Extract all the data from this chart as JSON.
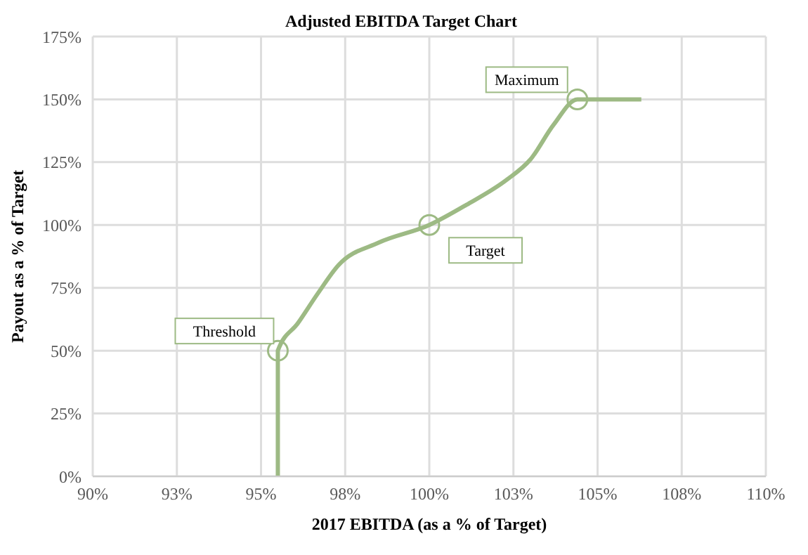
{
  "chart_data": {
    "type": "line",
    "title": "Adjusted EBITDA Target Chart",
    "xlabel": "2017 EBITDA (as a % of Target)",
    "ylabel": "Payout as a % of Target",
    "xlim": [
      90,
      110
    ],
    "xticks": [
      {
        "value": 90,
        "label": "90%"
      },
      {
        "value": 92.5,
        "label": "93%"
      },
      {
        "value": 95,
        "label": "95%"
      },
      {
        "value": 97.5,
        "label": "98%"
      },
      {
        "value": 100,
        "label": "100%"
      },
      {
        "value": 102.5,
        "label": "103%"
      },
      {
        "value": 105,
        "label": "105%"
      },
      {
        "value": 107.5,
        "label": "108%"
      },
      {
        "value": 110,
        "label": "110%"
      }
    ],
    "ylim": [
      0,
      175
    ],
    "yticks": [
      {
        "value": 0,
        "label": "0%"
      },
      {
        "value": 25,
        "label": "25%"
      },
      {
        "value": 50,
        "label": "50%"
      },
      {
        "value": 75,
        "label": "75%"
      },
      {
        "value": 100,
        "label": "100%"
      },
      {
        "value": 125,
        "label": "125%"
      },
      {
        "value": 150,
        "label": "150%"
      },
      {
        "value": 175,
        "label": "175%"
      }
    ],
    "grid": true,
    "marker": "none",
    "line_style": "solid",
    "series": [
      {
        "color": "#9dba84",
        "x": [
          95.5,
          95.5,
          96.1,
          96.7,
          97.3,
          98.5,
          100,
          101.1,
          102.3,
          103,
          103.7,
          104.4,
          106.3
        ],
        "values": [
          0,
          50,
          61,
          73,
          84,
          93,
          100,
          108,
          118,
          126,
          140,
          150,
          150
        ]
      },
      {
        "type": "scatter",
        "color": "#9dba84",
        "marker": "circle",
        "x": [
          95.5,
          100,
          104.4
        ],
        "values": [
          50,
          100,
          150
        ]
      }
    ],
    "annotations": [
      {
        "text": "Threshold",
        "x": 95.5,
        "y": 50
      },
      {
        "text": "Target",
        "x": 100,
        "y": 100
      },
      {
        "text": "Maximum",
        "x": 104.4,
        "y": 150
      }
    ]
  }
}
